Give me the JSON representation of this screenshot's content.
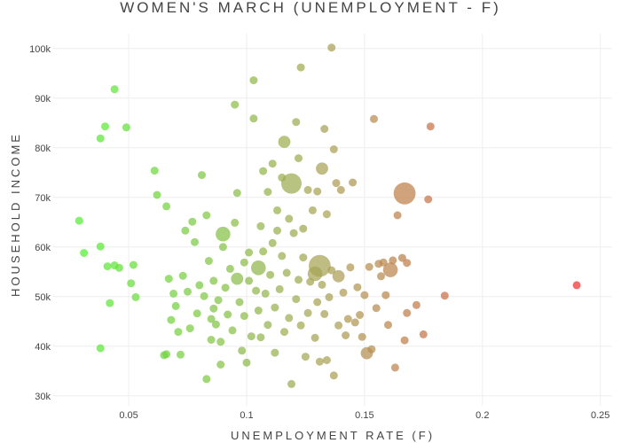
{
  "chart_data": {
    "type": "scatter",
    "title": "WOMEN'S MARCH (UNEMPLOYMENT - F)",
    "xlabel": "UNEMPLOYMENT RATE (F)",
    "ylabel": "HOUSEHOLD INCOME",
    "xlim": [
      0.018,
      0.255
    ],
    "ylim": [
      28000,
      103000
    ],
    "x_ticks": [
      0.05,
      0.1,
      0.15,
      0.2,
      0.25
    ],
    "x_tick_labels": [
      "0.05",
      "0.1",
      "0.15",
      "0.2",
      "0.25"
    ],
    "y_ticks": [
      30000,
      40000,
      50000,
      60000,
      70000,
      80000,
      90000,
      100000
    ],
    "y_tick_labels": [
      "30k",
      "40k",
      "50k",
      "60k",
      "70k",
      "80k",
      "90k",
      "100k"
    ],
    "color_scale": {
      "low": "#55ee33",
      "mid": "#aaa055",
      "high": "#ee3333",
      "range": [
        0.03,
        0.24
      ]
    },
    "grid": true,
    "legend": "none",
    "points": [
      [
        0.029,
        65300,
        1
      ],
      [
        0.031,
        58800,
        1
      ],
      [
        0.038,
        60100,
        1
      ],
      [
        0.038,
        81900,
        1
      ],
      [
        0.038,
        39600,
        1
      ],
      [
        0.04,
        84300,
        1
      ],
      [
        0.041,
        56100,
        1
      ],
      [
        0.042,
        48700,
        1
      ],
      [
        0.044,
        91800,
        1
      ],
      [
        0.044,
        56300,
        1
      ],
      [
        0.046,
        55800,
        1
      ],
      [
        0.049,
        84100,
        1
      ],
      [
        0.051,
        52700,
        1
      ],
      [
        0.052,
        56400,
        1
      ],
      [
        0.053,
        49900,
        1
      ],
      [
        0.061,
        75400,
        1
      ],
      [
        0.062,
        70500,
        1
      ],
      [
        0.065,
        38200,
        1
      ],
      [
        0.066,
        38400,
        1
      ],
      [
        0.066,
        68200,
        1
      ],
      [
        0.067,
        53600,
        1
      ],
      [
        0.068,
        45300,
        1
      ],
      [
        0.069,
        50600,
        1
      ],
      [
        0.07,
        48100,
        1
      ],
      [
        0.071,
        42900,
        1
      ],
      [
        0.072,
        38300,
        1
      ],
      [
        0.073,
        54200,
        1
      ],
      [
        0.074,
        63300,
        1
      ],
      [
        0.075,
        51000,
        1
      ],
      [
        0.076,
        43600,
        1
      ],
      [
        0.077,
        65100,
        1
      ],
      [
        0.078,
        61000,
        1
      ],
      [
        0.079,
        46600,
        1
      ],
      [
        0.08,
        52300,
        1
      ],
      [
        0.081,
        74500,
        1
      ],
      [
        0.082,
        50100,
        1
      ],
      [
        0.083,
        33400,
        1
      ],
      [
        0.083,
        66400,
        1
      ],
      [
        0.084,
        57200,
        1
      ],
      [
        0.085,
        41300,
        1
      ],
      [
        0.085,
        45500,
        1
      ],
      [
        0.086,
        53200,
        1
      ],
      [
        0.086,
        47600,
        1
      ],
      [
        0.087,
        44400,
        1
      ],
      [
        0.088,
        49300,
        1
      ],
      [
        0.089,
        36300,
        1
      ],
      [
        0.089,
        40900,
        1
      ],
      [
        0.09,
        62600,
        3
      ],
      [
        0.09,
        60000,
        1
      ],
      [
        0.091,
        51800,
        1
      ],
      [
        0.092,
        46400,
        1
      ],
      [
        0.093,
        55600,
        1
      ],
      [
        0.094,
        43200,
        1
      ],
      [
        0.095,
        88700,
        1
      ],
      [
        0.095,
        64900,
        1
      ],
      [
        0.096,
        70900,
        1
      ],
      [
        0.096,
        53600,
        2
      ],
      [
        0.097,
        48900,
        1
      ],
      [
        0.098,
        39100,
        1
      ],
      [
        0.099,
        56900,
        1
      ],
      [
        0.099,
        46100,
        1
      ],
      [
        0.1,
        36700,
        1
      ],
      [
        0.101,
        53200,
        1
      ],
      [
        0.101,
        58900,
        1
      ],
      [
        0.102,
        42000,
        1
      ],
      [
        0.103,
        93600,
        1
      ],
      [
        0.103,
        85900,
        1
      ],
      [
        0.104,
        51200,
        1
      ],
      [
        0.105,
        55800,
        3
      ],
      [
        0.105,
        47200,
        1
      ],
      [
        0.106,
        64200,
        1
      ],
      [
        0.106,
        41800,
        1
      ],
      [
        0.107,
        75300,
        1
      ],
      [
        0.107,
        59100,
        1
      ],
      [
        0.108,
        50600,
        1
      ],
      [
        0.109,
        71100,
        1
      ],
      [
        0.109,
        44300,
        1
      ],
      [
        0.11,
        54400,
        1
      ],
      [
        0.111,
        60800,
        1
      ],
      [
        0.111,
        76800,
        1
      ],
      [
        0.112,
        47800,
        1
      ],
      [
        0.112,
        38700,
        1
      ],
      [
        0.113,
        63300,
        1
      ],
      [
        0.113,
        67400,
        1
      ],
      [
        0.114,
        51500,
        1
      ],
      [
        0.115,
        74000,
        1
      ],
      [
        0.115,
        58200,
        1
      ],
      [
        0.116,
        81200,
        2
      ],
      [
        0.116,
        42900,
        1
      ],
      [
        0.117,
        54800,
        1
      ],
      [
        0.118,
        45700,
        1
      ],
      [
        0.118,
        65700,
        1
      ],
      [
        0.119,
        72800,
        6
      ],
      [
        0.119,
        32400,
        1
      ],
      [
        0.12,
        62800,
        1
      ],
      [
        0.121,
        85200,
        1
      ],
      [
        0.121,
        49500,
        1
      ],
      [
        0.122,
        77900,
        1
      ],
      [
        0.122,
        53400,
        1
      ],
      [
        0.123,
        96200,
        1
      ],
      [
        0.123,
        44200,
        1
      ],
      [
        0.124,
        57900,
        1
      ],
      [
        0.124,
        63700,
        1
      ],
      [
        0.125,
        37900,
        1
      ],
      [
        0.126,
        46700,
        1
      ],
      [
        0.126,
        71500,
        1
      ],
      [
        0.127,
        53000,
        1
      ],
      [
        0.128,
        67400,
        1
      ],
      [
        0.129,
        54600,
        3
      ],
      [
        0.129,
        41700,
        1
      ],
      [
        0.13,
        71200,
        1
      ],
      [
        0.13,
        48900,
        1
      ],
      [
        0.131,
        56200,
        7
      ],
      [
        0.131,
        36900,
        1
      ],
      [
        0.132,
        75800,
        2
      ],
      [
        0.132,
        52400,
        1
      ],
      [
        0.133,
        83800,
        1
      ],
      [
        0.133,
        46500,
        1
      ],
      [
        0.134,
        66600,
        1
      ],
      [
        0.134,
        37200,
        1
      ],
      [
        0.135,
        49900,
        1
      ],
      [
        0.136,
        100200,
        1
      ],
      [
        0.136,
        55300,
        1
      ],
      [
        0.137,
        79700,
        1
      ],
      [
        0.137,
        34100,
        1
      ],
      [
        0.138,
        72900,
        1
      ],
      [
        0.139,
        54100,
        2
      ],
      [
        0.139,
        44200,
        1
      ],
      [
        0.14,
        71500,
        1
      ],
      [
        0.141,
        50800,
        1
      ],
      [
        0.142,
        42200,
        1
      ],
      [
        0.143,
        45500,
        1
      ],
      [
        0.144,
        55900,
        1
      ],
      [
        0.145,
        73000,
        1
      ],
      [
        0.146,
        44800,
        1
      ],
      [
        0.147,
        51900,
        1
      ],
      [
        0.148,
        46300,
        1
      ],
      [
        0.149,
        41900,
        1
      ],
      [
        0.15,
        50300,
        1
      ],
      [
        0.151,
        38600,
        2
      ],
      [
        0.152,
        56000,
        1
      ],
      [
        0.153,
        39400,
        1
      ],
      [
        0.154,
        85800,
        1
      ],
      [
        0.155,
        47700,
        1
      ],
      [
        0.156,
        56600,
        1
      ],
      [
        0.157,
        54100,
        1
      ],
      [
        0.158,
        56900,
        1
      ],
      [
        0.159,
        50300,
        1
      ],
      [
        0.16,
        44300,
        1
      ],
      [
        0.161,
        55400,
        3
      ],
      [
        0.162,
        57300,
        1
      ],
      [
        0.163,
        35700,
        1
      ],
      [
        0.164,
        66400,
        1
      ],
      [
        0.166,
        57800,
        1
      ],
      [
        0.167,
        70800,
        7
      ],
      [
        0.167,
        41200,
        1
      ],
      [
        0.168,
        56800,
        1
      ],
      [
        0.168,
        46700,
        1
      ],
      [
        0.172,
        48300,
        1
      ],
      [
        0.175,
        42400,
        1
      ],
      [
        0.177,
        69600,
        1
      ],
      [
        0.178,
        84300,
        1
      ],
      [
        0.184,
        50200,
        1
      ],
      [
        0.24,
        52300,
        1
      ]
    ]
  }
}
